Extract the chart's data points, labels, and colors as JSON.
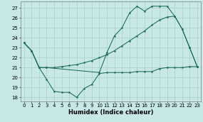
{
  "background_color": "#c8e8e8",
  "grid_color": "#a8cccc",
  "line_color": "#1a6b5a",
  "xlabel": "Humidex (Indice chaleur)",
  "xlim": [
    -0.5,
    23.5
  ],
  "ylim": [
    17.6,
    27.7
  ],
  "yticks": [
    18,
    19,
    20,
    21,
    22,
    23,
    24,
    25,
    26,
    27
  ],
  "xticks": [
    0,
    1,
    2,
    3,
    4,
    5,
    6,
    7,
    8,
    9,
    10,
    11,
    12,
    13,
    14,
    15,
    16,
    17,
    18,
    19,
    20,
    21,
    22,
    23
  ],
  "line1_x": [
    0,
    1,
    2,
    3,
    4,
    5,
    6,
    7,
    8,
    9,
    10,
    11,
    12,
    13,
    14,
    15,
    16,
    17,
    18,
    19,
    20,
    21,
    22,
    23
  ],
  "line1_y": [
    23.5,
    22.7,
    21.0,
    21.0,
    21.0,
    21.1,
    21.2,
    21.3,
    21.5,
    21.7,
    22.0,
    22.3,
    22.7,
    23.2,
    23.7,
    24.2,
    24.7,
    25.3,
    25.8,
    26.1,
    26.2,
    24.9,
    23.0,
    21.1
  ],
  "line2_x": [
    0,
    1,
    2,
    3,
    4,
    5,
    6,
    7,
    8,
    9,
    10,
    11,
    12,
    13,
    14,
    15,
    16,
    17,
    18,
    19,
    20,
    21,
    22,
    23
  ],
  "line2_y": [
    23.5,
    22.7,
    21.0,
    19.8,
    18.6,
    18.5,
    18.5,
    18.0,
    18.9,
    19.3,
    20.4,
    20.5,
    20.5,
    20.5,
    20.5,
    20.6,
    20.6,
    20.6,
    20.9,
    21.0,
    21.0,
    21.0,
    21.1,
    21.1
  ],
  "line3_x": [
    0,
    1,
    2,
    3,
    10,
    11,
    12,
    13,
    14,
    15,
    16,
    17,
    18,
    19,
    20,
    21,
    22,
    23
  ],
  "line3_y": [
    23.5,
    22.7,
    21.0,
    21.0,
    20.5,
    22.5,
    24.2,
    25.0,
    26.5,
    27.2,
    26.7,
    27.2,
    27.2,
    27.2,
    26.2,
    24.9,
    23.0,
    21.1
  ]
}
